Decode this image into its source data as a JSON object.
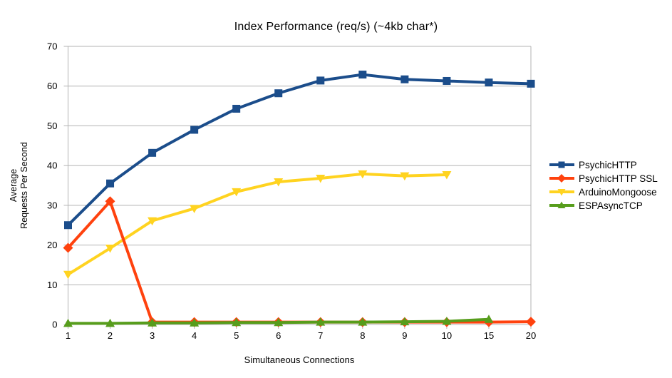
{
  "chart_data": {
    "type": "line",
    "title": "Index Performance (req/s) (~4kb char*)",
    "xlabel": "Simultaneous Connections",
    "ylabel": "Average Requests Per Second",
    "ylabel_lines": [
      "Average",
      "Requests Per Second"
    ],
    "categories": [
      "1",
      "2",
      "3",
      "4",
      "5",
      "6",
      "7",
      "8",
      "9",
      "10",
      "15",
      "20"
    ],
    "ylim": [
      0,
      70
    ],
    "ytick_step": 10,
    "ytick_labels": [
      "0",
      "10",
      "20",
      "30",
      "40",
      "50",
      "60",
      "70"
    ],
    "grid": true,
    "legend_position": "right",
    "series": [
      {
        "name": "PsychicHTTP",
        "color": "#1B4D8B",
        "marker": "square",
        "values": [
          25,
          35.5,
          43.2,
          49,
          54.3,
          58.2,
          61.4,
          62.9,
          61.7,
          61.3,
          60.9,
          60.6
        ]
      },
      {
        "name": "PsychicHTTP SSL",
        "color": "#FF420E",
        "marker": "diamond",
        "values": [
          19.3,
          31,
          0.6,
          0.6,
          0.6,
          0.6,
          0.6,
          0.6,
          0.6,
          0.6,
          0.6,
          0.7
        ]
      },
      {
        "name": "ArduinoMongoose",
        "color": "#FFD320",
        "marker": "triangle-down",
        "values": [
          12.6,
          19.2,
          26.1,
          29.2,
          33.4,
          35.9,
          36.8,
          37.9,
          37.4,
          37.7,
          null,
          null
        ]
      },
      {
        "name": "ESPAsyncTCP",
        "color": "#579D1C",
        "marker": "triangle-up",
        "values": [
          0.3,
          0.3,
          0.4,
          0.4,
          0.5,
          0.5,
          0.6,
          0.6,
          0.7,
          0.8,
          1.3,
          null
        ]
      }
    ]
  },
  "colors": {
    "background": "#ffffff",
    "grid": "#b3b3b3",
    "axis": "#b3b3b3",
    "text": "#000000"
  }
}
